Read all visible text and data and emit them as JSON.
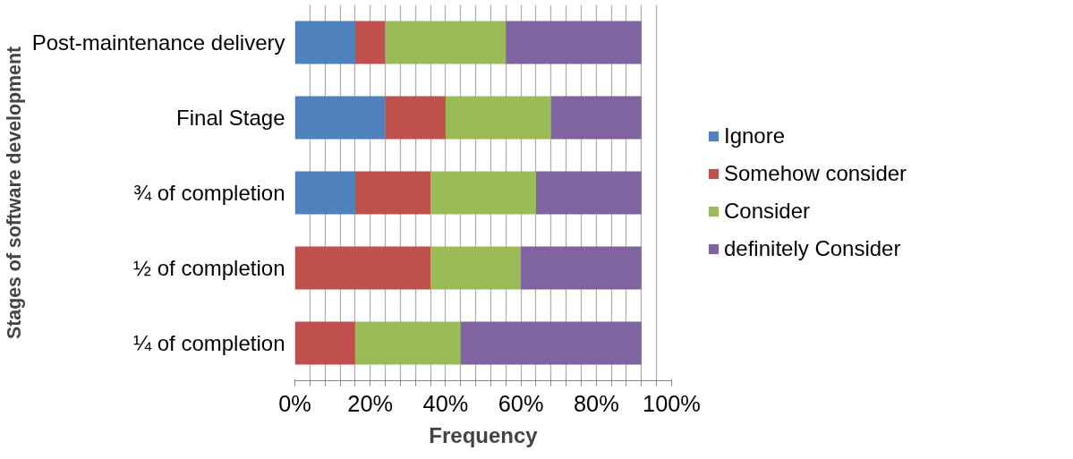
{
  "chart_data": {
    "type": "bar",
    "orientation": "horizontal",
    "stacked": true,
    "xlabel": "Frequency",
    "ylabel": "Stages of software development",
    "categories": [
      "Post-maintenance delivery",
      "Final Stage",
      "¾ of completion",
      "½ of completion",
      "¼ of completion"
    ],
    "series": [
      {
        "name": "Ignore",
        "color": "#4f81bd",
        "values": [
          16,
          24,
          16,
          0,
          0
        ]
      },
      {
        "name": "Somehow consider",
        "color": "#c0504d",
        "values": [
          8,
          16,
          20,
          36,
          16
        ]
      },
      {
        "name": "Consider",
        "color": "#9bbb59",
        "values": [
          32,
          28,
          28,
          24,
          28
        ]
      },
      {
        "name": "definitely Consider",
        "color": "#8064a2",
        "values": [
          36,
          24,
          28,
          32,
          48
        ]
      }
    ],
    "xlim": [
      0,
      100
    ],
    "xticks": [
      {
        "value": 0,
        "label": "0%"
      },
      {
        "value": 4,
        "label": null
      },
      {
        "value": 8,
        "label": null
      },
      {
        "value": 12,
        "label": null
      },
      {
        "value": 16,
        "label": null
      },
      {
        "value": 20,
        "label": "20%"
      },
      {
        "value": 24,
        "label": null
      },
      {
        "value": 28,
        "label": null
      },
      {
        "value": 32,
        "label": null
      },
      {
        "value": 36,
        "label": null
      },
      {
        "value": 40,
        "label": "40%"
      },
      {
        "value": 44,
        "label": null
      },
      {
        "value": 48,
        "label": null
      },
      {
        "value": 52,
        "label": null
      },
      {
        "value": 56,
        "label": null
      },
      {
        "value": 60,
        "label": "60%"
      },
      {
        "value": 64,
        "label": null
      },
      {
        "value": 68,
        "label": null
      },
      {
        "value": 72,
        "label": null
      },
      {
        "value": 76,
        "label": null
      },
      {
        "value": 80,
        "label": "80%"
      },
      {
        "value": 84,
        "label": null
      },
      {
        "value": 88,
        "label": null
      },
      {
        "value": 92,
        "label": null
      },
      {
        "value": 96,
        "label": null
      },
      {
        "value": 100,
        "label": "100%"
      }
    ],
    "grid": "x",
    "legend": "right"
  }
}
